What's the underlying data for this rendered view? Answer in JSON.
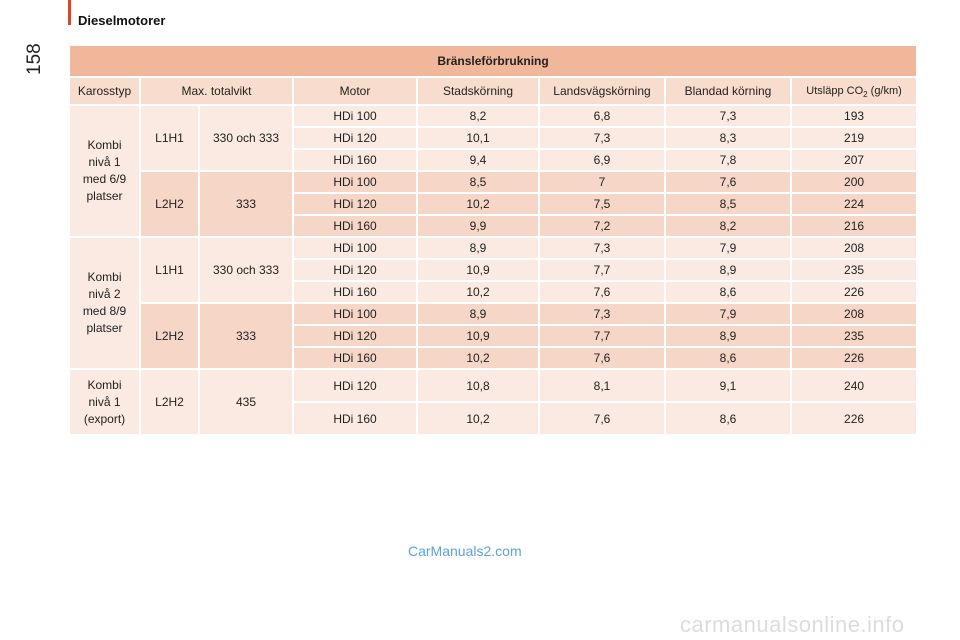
{
  "header": {
    "section_title": "Dieselmotorer",
    "page_number": "158"
  },
  "table": {
    "title": "Bränsleförbrukning",
    "columns": {
      "karosstyp": "Karosstyp",
      "max_totalvikt": "Max. totalvikt",
      "motor": "Motor",
      "stadskorning": "Stadskörning",
      "landsvagskorning": "Landsvägskörning",
      "blandad_korning": "Blandad körning",
      "utslapp_prefix": "Utsläpp CO",
      "utslapp_sub": "2",
      "utslapp_suffix": " (g/km)"
    },
    "groups": [
      {
        "karosstyp": [
          "Kombi",
          "nivå 1",
          "med 6/9",
          "platser"
        ],
        "subgroups": [
          {
            "variant": "L1H1",
            "vikt": "330 och 333",
            "rows": [
              [
                "HDi 100",
                "8,2",
                "6,8",
                "7,3",
                "193"
              ],
              [
                "HDi 120",
                "10,1",
                "7,3",
                "8,3",
                "219"
              ],
              [
                "HDi 160",
                "9,4",
                "6,9",
                "7,8",
                "207"
              ]
            ]
          },
          {
            "variant": "L2H2",
            "vikt": "333",
            "rows": [
              [
                "HDi 100",
                "8,5",
                "7",
                "7,6",
                "200"
              ],
              [
                "HDi 120",
                "10,2",
                "7,5",
                "8,5",
                "224"
              ],
              [
                "HDi 160",
                "9,9",
                "7,2",
                "8,2",
                "216"
              ]
            ]
          }
        ]
      },
      {
        "karosstyp": [
          "Kombi",
          "nivå 2",
          "med 8/9",
          "platser"
        ],
        "subgroups": [
          {
            "variant": "L1H1",
            "vikt": "330 och 333",
            "rows": [
              [
                "HDi 100",
                "8,9",
                "7,3",
                "7,9",
                "208"
              ],
              [
                "HDi 120",
                "10,9",
                "7,7",
                "8,9",
                "235"
              ],
              [
                "HDi 160",
                "10,2",
                "7,6",
                "8,6",
                "226"
              ]
            ]
          },
          {
            "variant": "L2H2",
            "vikt": "333",
            "rows": [
              [
                "HDi 100",
                "8,9",
                "7,3",
                "7,9",
                "208"
              ],
              [
                "HDi 120",
                "10,9",
                "7,7",
                "8,9",
                "235"
              ],
              [
                "HDi 160",
                "10,2",
                "7,6",
                "8,6",
                "226"
              ]
            ]
          }
        ]
      },
      {
        "karosstyp": [
          "Kombi",
          "nivå 1",
          "(export)"
        ],
        "subgroups": [
          {
            "variant": "L2H2",
            "vikt": "435",
            "rows": [
              [
                "HDi 120",
                "10,8",
                "8,1",
                "9,1",
                "240"
              ],
              [
                "HDi 160",
                "10,2",
                "7,6",
                "8,6",
                "226"
              ]
            ]
          }
        ]
      }
    ]
  },
  "footer": {
    "watermark": "CarManuals2.com",
    "site": "carmanualsonline.info"
  }
}
